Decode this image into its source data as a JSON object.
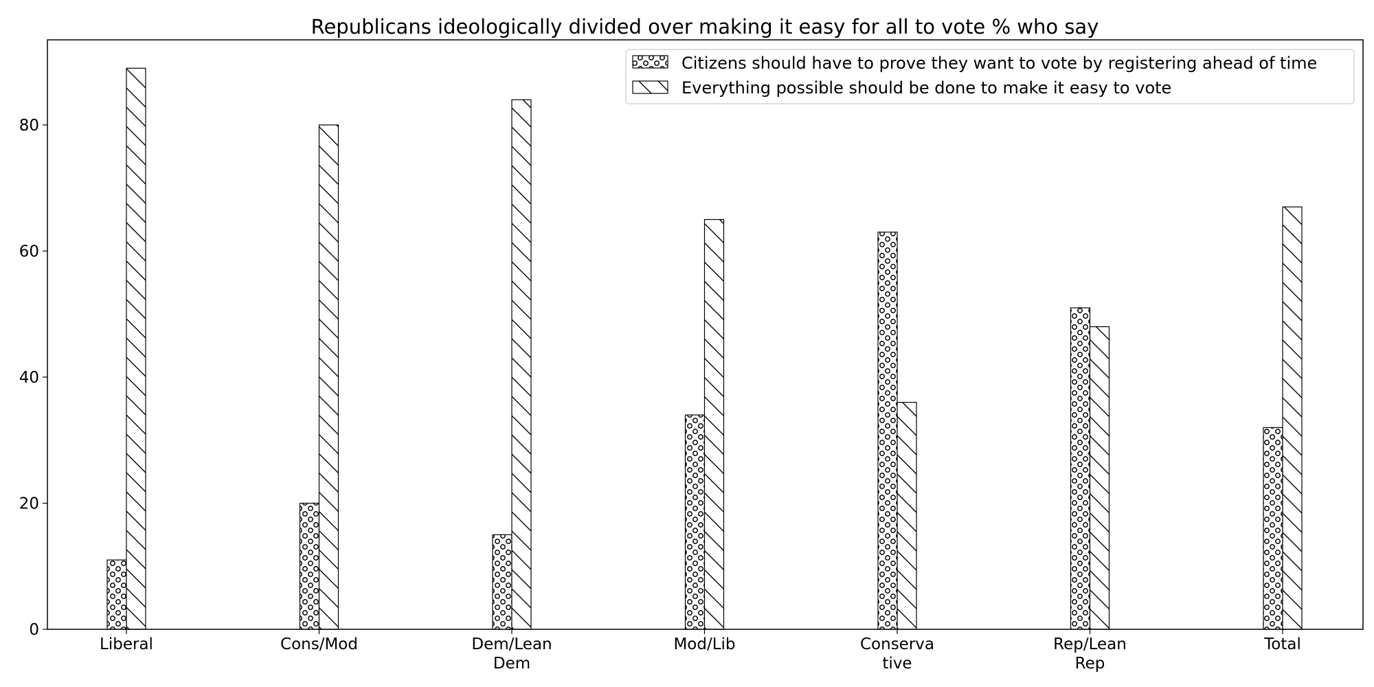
{
  "chart_data": {
    "type": "bar",
    "title": "Republicans ideologically divided over making it easy for all to vote % who say",
    "xlabel": "",
    "ylabel": "",
    "categories": [
      [
        "Liberal"
      ],
      [
        "Cons/Mod"
      ],
      [
        "Dem/Lean",
        "Dem"
      ],
      [
        "Mod/Lib"
      ],
      [
        "Conserva",
        "tive"
      ],
      [
        "Rep/Lean",
        "Rep"
      ],
      [
        "Total"
      ]
    ],
    "series": [
      {
        "name": "Citizens should have to prove they want to vote by registering ahead of time",
        "pattern": "small-circles",
        "values": [
          11,
          20,
          15,
          34,
          63,
          51,
          32
        ]
      },
      {
        "name": "Everything possible should be done to make it easy to vote",
        "pattern": "back-diagonal-hatch",
        "values": [
          89,
          80,
          84,
          65,
          36,
          48,
          67
        ]
      }
    ],
    "ylim": [
      0,
      93.5
    ],
    "yticks": [
      0,
      20,
      40,
      60,
      80
    ],
    "grid": false,
    "legend_position": "top-right",
    "colors": {
      "bar_fill": "#ffffff",
      "bar_edge": "#000000",
      "axis": "#000000"
    }
  }
}
